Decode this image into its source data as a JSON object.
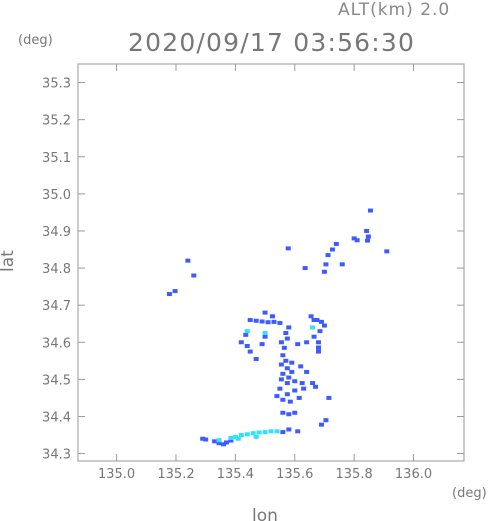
{
  "chart_data": {
    "type": "scatter",
    "header_right": "ALT(km) 2.0",
    "title": "2020/09/17 03:56:30",
    "xlabel": "lon",
    "ylabel": "lat",
    "x_unit": "(deg)",
    "y_unit": "(deg)",
    "xlim": [
      134.87,
      136.17
    ],
    "ylim": [
      34.28,
      35.35
    ],
    "x_ticks": [
      "135.0",
      "135.2",
      "135.4",
      "135.6",
      "135.8",
      "136.0"
    ],
    "y_ticks": [
      "35.3",
      "35.2",
      "35.1",
      "35.0",
      "34.9",
      "34.8",
      "34.7",
      "34.6",
      "34.5",
      "34.4",
      "34.3"
    ],
    "grid": false,
    "colors": {
      "axis": "#9a9a9a",
      "text": "#777777",
      "echo_low": "#3d5bff",
      "echo_high": "#33e0ff"
    },
    "series": [
      {
        "color": "#3d5bff",
        "points": [
          [
            135.855,
            34.955
          ],
          [
            135.842,
            34.9
          ],
          [
            135.848,
            34.885
          ],
          [
            135.845,
            34.874
          ],
          [
            135.8,
            34.88
          ],
          [
            135.81,
            34.875
          ],
          [
            135.91,
            34.845
          ],
          [
            135.74,
            34.865
          ],
          [
            135.727,
            34.85
          ],
          [
            135.712,
            34.835
          ],
          [
            135.705,
            34.81
          ],
          [
            135.7,
            34.79
          ],
          [
            135.76,
            34.81
          ],
          [
            135.635,
            34.8
          ],
          [
            135.578,
            34.853
          ],
          [
            135.24,
            34.82
          ],
          [
            135.26,
            34.78
          ],
          [
            135.197,
            34.738
          ],
          [
            135.178,
            34.73
          ],
          [
            135.5,
            34.68
          ],
          [
            135.525,
            34.67
          ],
          [
            135.45,
            34.66
          ],
          [
            135.47,
            34.658
          ],
          [
            135.49,
            34.656
          ],
          [
            135.51,
            34.654
          ],
          [
            135.53,
            34.655
          ],
          [
            135.55,
            34.652
          ],
          [
            135.655,
            34.67
          ],
          [
            135.665,
            34.66
          ],
          [
            135.675,
            34.66
          ],
          [
            135.69,
            34.655
          ],
          [
            135.7,
            34.645
          ],
          [
            135.685,
            34.63
          ],
          [
            135.665,
            34.615
          ],
          [
            135.68,
            34.6
          ],
          [
            135.68,
            34.586
          ],
          [
            135.64,
            34.6
          ],
          [
            135.61,
            34.595
          ],
          [
            135.58,
            34.64
          ],
          [
            135.57,
            34.625
          ],
          [
            135.575,
            34.61
          ],
          [
            135.555,
            34.6
          ],
          [
            135.565,
            34.585
          ],
          [
            135.435,
            34.62
          ],
          [
            135.44,
            34.59
          ],
          [
            135.5,
            34.615
          ],
          [
            135.49,
            34.595
          ],
          [
            135.56,
            34.565
          ],
          [
            135.57,
            34.55
          ],
          [
            135.59,
            34.545
          ],
          [
            135.555,
            34.54
          ],
          [
            135.575,
            34.53
          ],
          [
            135.59,
            34.52
          ],
          [
            135.56,
            34.515
          ],
          [
            135.62,
            34.535
          ],
          [
            135.64,
            34.52
          ],
          [
            135.58,
            34.505
          ],
          [
            135.555,
            34.5
          ],
          [
            135.575,
            34.49
          ],
          [
            135.6,
            34.495
          ],
          [
            135.625,
            34.49
          ],
          [
            135.66,
            34.49
          ],
          [
            135.67,
            34.48
          ],
          [
            135.63,
            34.475
          ],
          [
            135.6,
            34.47
          ],
          [
            135.575,
            34.46
          ],
          [
            135.55,
            34.475
          ],
          [
            135.54,
            34.455
          ],
          [
            135.56,
            34.445
          ],
          [
            135.585,
            34.44
          ],
          [
            135.615,
            34.45
          ],
          [
            135.56,
            34.41
          ],
          [
            135.58,
            34.406
          ],
          [
            135.6,
            34.41
          ],
          [
            135.42,
            34.6
          ],
          [
            135.45,
            34.575
          ],
          [
            135.47,
            34.555
          ],
          [
            135.68,
            34.575
          ],
          [
            135.715,
            34.45
          ],
          [
            135.705,
            34.39
          ],
          [
            135.69,
            34.378
          ],
          [
            135.33,
            34.333
          ],
          [
            135.345,
            34.328
          ],
          [
            135.36,
            34.325
          ],
          [
            135.3,
            34.338
          ],
          [
            135.29,
            34.34
          ],
          [
            135.37,
            34.33
          ],
          [
            135.385,
            34.335
          ],
          [
            135.61,
            34.36
          ],
          [
            135.58,
            34.365
          ],
          [
            135.56,
            34.358
          ]
        ]
      },
      {
        "color": "#33e0ff",
        "points": [
          [
            135.4,
            34.345
          ],
          [
            135.42,
            34.35
          ],
          [
            135.44,
            34.352
          ],
          [
            135.46,
            34.355
          ],
          [
            135.48,
            34.357
          ],
          [
            135.5,
            34.358
          ],
          [
            135.52,
            34.36
          ],
          [
            135.54,
            34.36
          ],
          [
            135.41,
            34.34
          ],
          [
            135.47,
            34.345
          ],
          [
            135.385,
            34.342
          ],
          [
            135.345,
            34.336
          ],
          [
            135.44,
            34.63
          ],
          [
            135.5,
            34.625
          ],
          [
            135.66,
            34.64
          ]
        ]
      }
    ]
  }
}
